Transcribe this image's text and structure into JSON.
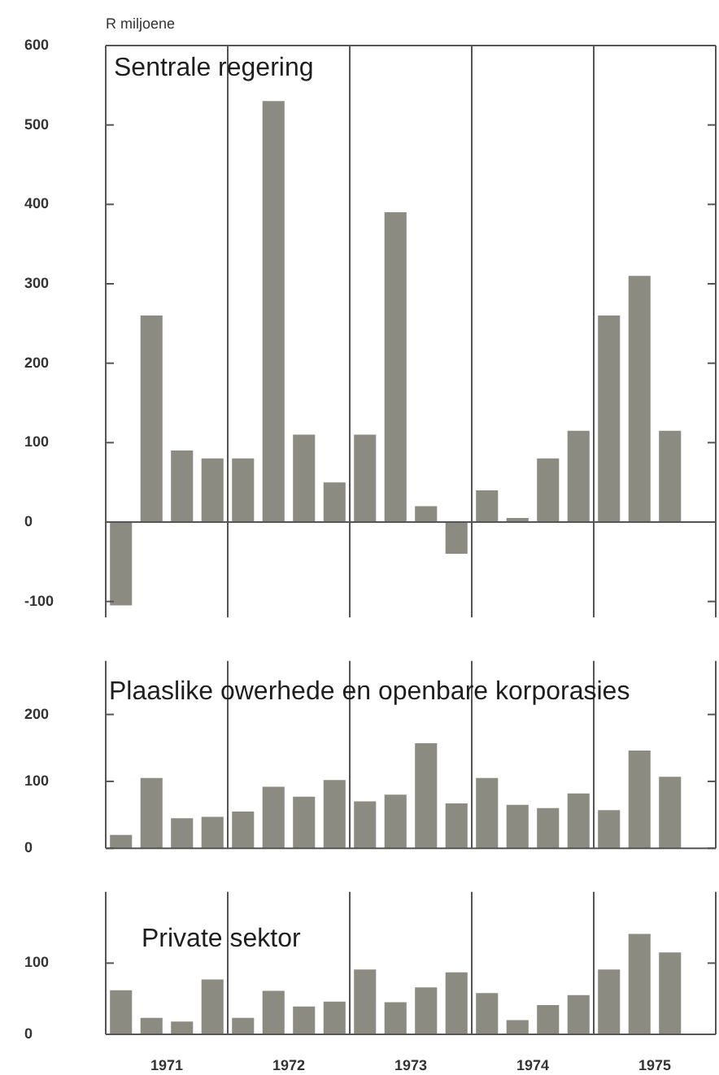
{
  "chart_data": [
    {
      "type": "bar",
      "title": "Sentrale regering",
      "ylabel": "R miljoene",
      "color": "#8c8b82",
      "x": [
        1971.125,
        1971.375,
        1971.625,
        1971.875,
        1972.125,
        1972.375,
        1972.625,
        1972.875,
        1973.125,
        1973.375,
        1973.625,
        1973.875,
        1974.125,
        1974.375,
        1974.625,
        1974.875,
        1975.125,
        1975.375,
        1975.625
      ],
      "values": [
        -105,
        260,
        90,
        80,
        80,
        530,
        110,
        50,
        110,
        390,
        20,
        -40,
        40,
        5,
        80,
        115,
        260,
        310,
        115
      ],
      "xlim": [
        1971,
        1976
      ],
      "ylim": [
        -120,
        600
      ],
      "yticks": [
        -100,
        0,
        100,
        200,
        300,
        400,
        500,
        600
      ],
      "tick_labels": "y",
      "ref_lines": [
        {
          "axis": "x",
          "value": 1972
        },
        {
          "axis": "x",
          "value": 1973
        },
        {
          "axis": "x",
          "value": 1974
        },
        {
          "axis": "x",
          "value": 1975
        }
      ]
    },
    {
      "type": "bar",
      "title": "Plaaslike owerhede en openbare korporasies",
      "color": "#8c8b82",
      "x": [
        1971.125,
        1971.375,
        1971.625,
        1971.875,
        1972.125,
        1972.375,
        1972.625,
        1972.875,
        1973.125,
        1973.375,
        1973.625,
        1973.875,
        1974.125,
        1974.375,
        1974.625,
        1974.875,
        1975.125,
        1975.375,
        1975.625
      ],
      "values": [
        20,
        105,
        45,
        47,
        55,
        92,
        77,
        102,
        70,
        80,
        157,
        67,
        105,
        65,
        60,
        82,
        57,
        146,
        107
      ],
      "xlim": [
        1971,
        1976
      ],
      "ylim": [
        0,
        280
      ],
      "yticks": [
        0,
        100,
        200
      ],
      "tick_labels": "y",
      "ref_lines": [
        {
          "axis": "x",
          "value": 1972
        },
        {
          "axis": "x",
          "value": 1973
        },
        {
          "axis": "x",
          "value": 1974
        },
        {
          "axis": "x",
          "value": 1975
        }
      ]
    },
    {
      "type": "bar",
      "title": "Private sektor",
      "color": "#8c8b82",
      "x": [
        1971.125,
        1971.375,
        1971.625,
        1971.875,
        1972.125,
        1972.375,
        1972.625,
        1972.875,
        1973.125,
        1973.375,
        1973.625,
        1973.875,
        1974.125,
        1974.375,
        1974.625,
        1974.875,
        1975.125,
        1975.375,
        1975.625
      ],
      "values": [
        62,
        23,
        18,
        77,
        23,
        61,
        39,
        46,
        91,
        45,
        66,
        87,
        58,
        20,
        41,
        55,
        91,
        141,
        115
      ],
      "xlim": [
        1971,
        1976
      ],
      "ylim": [
        0,
        200
      ],
      "yticks": [
        0,
        100
      ],
      "xticks": [
        {
          "value": 1971.5,
          "label": "1971"
        },
        {
          "value": 1972.5,
          "label": "1972"
        },
        {
          "value": 1973.5,
          "label": "1973"
        },
        {
          "value": 1974.5,
          "label": "1974"
        },
        {
          "value": 1975.5,
          "label": "1975"
        }
      ],
      "ref_lines": [
        {
          "axis": "x",
          "value": 1972
        },
        {
          "axis": "x",
          "value": 1973
        },
        {
          "axis": "x",
          "value": 1974
        },
        {
          "axis": "x",
          "value": 1975
        }
      ]
    }
  ]
}
